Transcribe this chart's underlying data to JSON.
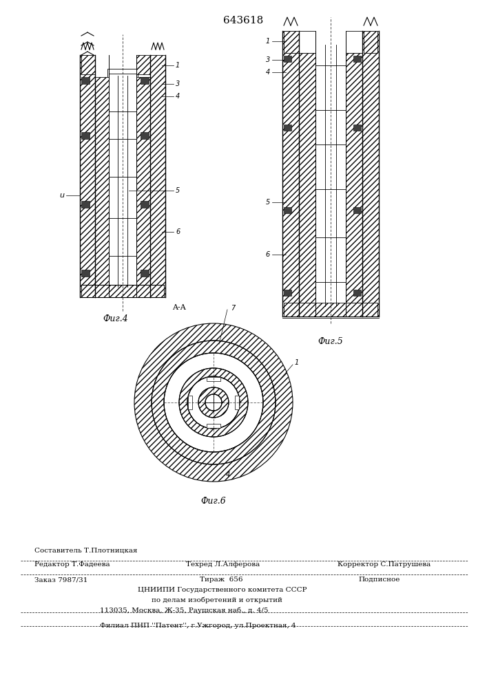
{
  "patent_number": "643618",
  "fig4_label": "Фиг.4",
  "fig5_label": "Фиг.5",
  "fig6_label": "Фиг.6",
  "fig6_section": "A-A",
  "lbl_1": "1",
  "lbl_3": "3",
  "lbl_4": "4",
  "lbl_5": "5",
  "lbl_6": "6",
  "lbl_7": "7",
  "lbl_u": "u",
  "footer_editor": "Редактор Т.Фадеева",
  "footer_comp": "Составитель Т.Плотницкая",
  "footer_tech": "Техред Л.Алферова",
  "footer_corr": "Корректор С.Патрушева",
  "footer_order": "Заказ 7987/31",
  "footer_tirazh": "Тираж  656",
  "footer_podp": "Подписное",
  "footer_org": "ЦНИИПИ Государственного комитета СССР",
  "footer_dept": "по делам изобретений и открытий",
  "footer_addr": "113035, Москва, Ж-35, Раушская наб., д. 4/5",
  "footer_branch": "Филиал ПНП ''Патент'', г.Ужгород, ул.Проектная, 4",
  "bg_color": "#ffffff"
}
